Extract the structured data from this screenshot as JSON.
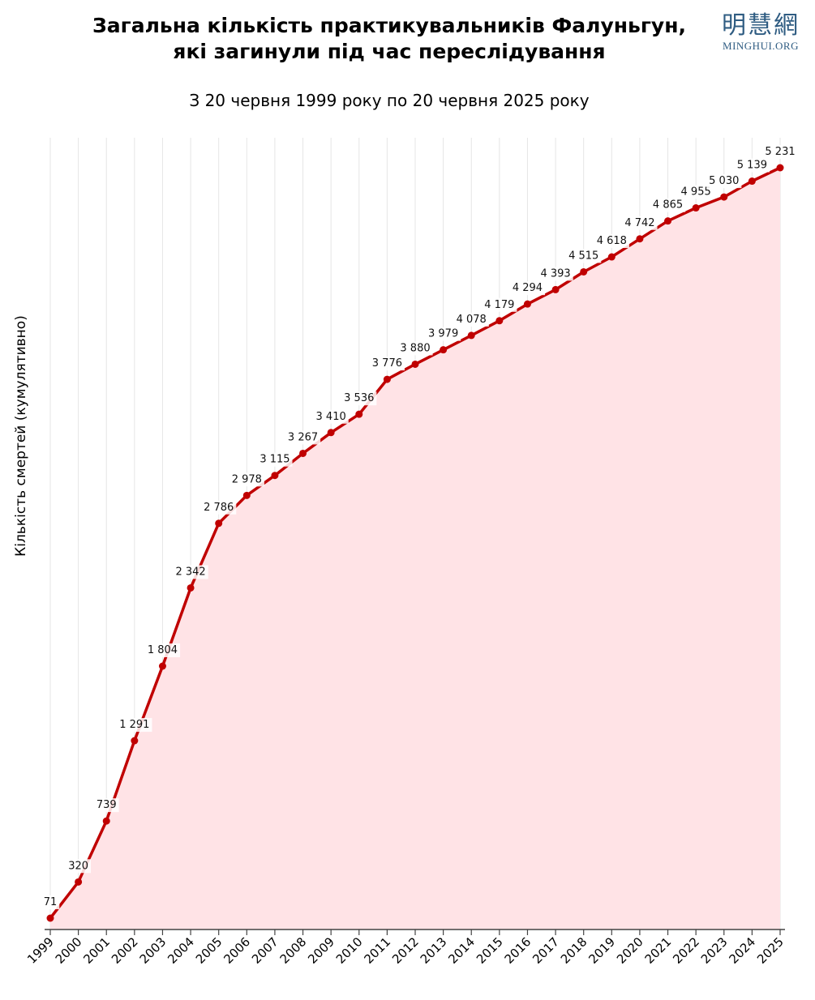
{
  "chart_data": {
    "type": "area",
    "title_line1": "Загальна кількість практикувальників Фалуньгун,",
    "title_line2": "які загинули під час переслідування",
    "subtitle": "З 20 червня 1999 року по 20 червня 2025 року",
    "ylabel": "Кількість смертей (кумулятивно)",
    "xlabel": "",
    "x": [
      "1999",
      "2000",
      "2001",
      "2002",
      "2003",
      "2004",
      "2005",
      "2006",
      "2007",
      "2008",
      "2009",
      "2010",
      "2011",
      "2012",
      "2013",
      "2014",
      "2015",
      "2016",
      "2017",
      "2018",
      "2019",
      "2020",
      "2021",
      "2022",
      "2023",
      "2024",
      "2025"
    ],
    "values": [
      71,
      320,
      739,
      1291,
      1804,
      2342,
      2786,
      2978,
      3115,
      3267,
      3410,
      3536,
      3776,
      3880,
      3979,
      4078,
      4179,
      4294,
      4393,
      4515,
      4618,
      4742,
      4865,
      4955,
      5030,
      5139,
      5231
    ],
    "labels": [
      "71",
      "320",
      "739",
      "1 291",
      "1 804",
      "2 342",
      "2 786",
      "2 978",
      "3 115",
      "3 267",
      "3 410",
      "3 536",
      "3 776",
      "3 880",
      "3 979",
      "4 078",
      "4 179",
      "4 294",
      "4 393",
      "4 515",
      "4 618",
      "4 742",
      "4 865",
      "4 955",
      "5 030",
      "5 139",
      "5 231"
    ],
    "ylim": [
      0,
      5300
    ],
    "grid": "vertical",
    "line_color": "#c00000",
    "fill_color": "#ffe3e6"
  },
  "logo": {
    "chinese": "明慧網",
    "latin": "MINGHUI.ORG"
  }
}
